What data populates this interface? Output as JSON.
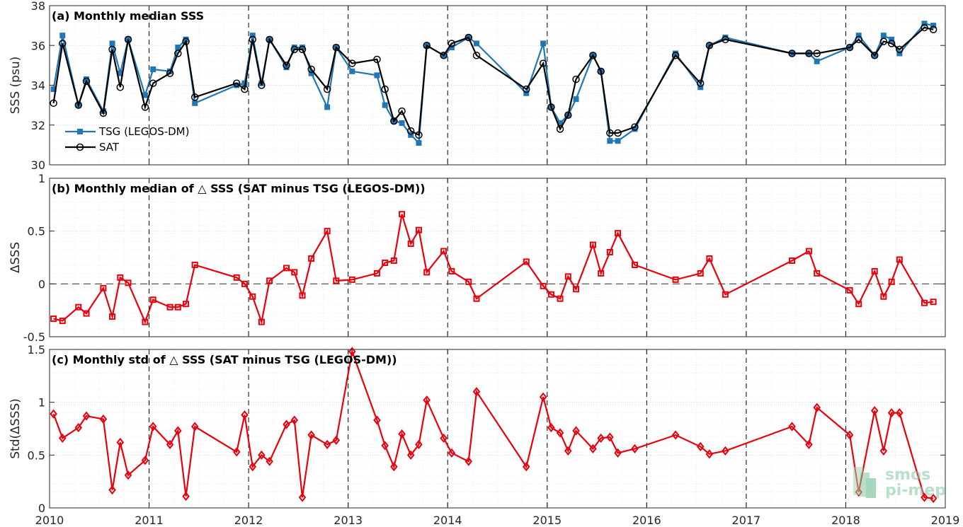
{
  "chart_data": [
    {
      "type": "line",
      "title": "(a) Monthly median SSS",
      "ylabel": "SSS (psu)",
      "ylim": [
        30,
        38
      ],
      "yticks": [
        "30",
        "32",
        "34",
        "36",
        "38"
      ],
      "xlim": [
        2010,
        2019
      ],
      "xticks": [
        "2010",
        "2011",
        "2012",
        "2013",
        "2014",
        "2015",
        "2016",
        "2017",
        "2018",
        "2019"
      ],
      "grid": true,
      "legend_position": "lower-left",
      "series": [
        {
          "name": "TSG (LEGOS-DM)",
          "color": "#1f77b4",
          "marker": "filled-square",
          "x": [
            2010.04,
            2010.13,
            2010.29,
            2010.37,
            2010.54,
            2010.63,
            2010.71,
            2010.79,
            2010.96,
            2011.04,
            2011.21,
            2011.29,
            2011.37,
            2011.46,
            2011.88,
            2011.96,
            2012.04,
            2012.13,
            2012.21,
            2012.38,
            2012.46,
            2012.54,
            2012.63,
            2012.79,
            2012.88,
            2013.04,
            2013.29,
            2013.37,
            2013.46,
            2013.54,
            2013.63,
            2013.71,
            2013.79,
            2013.96,
            2014.04,
            2014.21,
            2014.29,
            2014.79,
            2014.96,
            2015.04,
            2015.13,
            2015.21,
            2015.29,
            2015.46,
            2015.54,
            2015.63,
            2015.71,
            2015.88,
            2016.29,
            2016.54,
            2016.63,
            2016.79,
            2017.46,
            2017.63,
            2017.71,
            2018.04,
            2018.13,
            2018.29,
            2018.38,
            2018.46,
            2018.54,
            2018.79,
            2018.88
          ],
          "y": [
            33.8,
            36.5,
            33.0,
            34.3,
            32.7,
            36.1,
            34.6,
            36.3,
            33.5,
            34.8,
            34.7,
            35.9,
            36.3,
            33.1,
            34.0,
            34.1,
            36.5,
            34.1,
            36.3,
            34.9,
            35.9,
            35.9,
            34.6,
            32.9,
            35.9,
            34.7,
            34.5,
            33.0,
            32.2,
            32.1,
            31.5,
            31.1,
            36.0,
            35.5,
            35.9,
            36.4,
            36.1,
            33.6,
            36.1,
            32.9,
            32.1,
            32.5,
            33.3,
            35.5,
            34.7,
            31.2,
            31.2,
            31.8,
            35.6,
            33.9,
            36.0,
            36.4,
            35.6,
            35.6,
            35.2,
            35.9,
            36.5,
            35.5,
            36.5,
            36.3,
            35.6,
            37.1,
            37.0
          ]
        },
        {
          "name": "SAT",
          "color": "#000000",
          "marker": "open-circle",
          "x": [
            2010.04,
            2010.13,
            2010.29,
            2010.37,
            2010.54,
            2010.63,
            2010.71,
            2010.79,
            2010.96,
            2011.04,
            2011.21,
            2011.29,
            2011.37,
            2011.46,
            2011.88,
            2011.96,
            2012.04,
            2012.13,
            2012.21,
            2012.38,
            2012.46,
            2012.54,
            2012.63,
            2012.79,
            2012.88,
            2013.04,
            2013.29,
            2013.37,
            2013.46,
            2013.54,
            2013.63,
            2013.71,
            2013.79,
            2013.96,
            2014.04,
            2014.21,
            2014.29,
            2014.79,
            2014.96,
            2015.04,
            2015.13,
            2015.21,
            2015.29,
            2015.46,
            2015.54,
            2015.63,
            2015.71,
            2015.88,
            2016.29,
            2016.54,
            2016.63,
            2016.79,
            2017.46,
            2017.63,
            2017.71,
            2018.04,
            2018.13,
            2018.29,
            2018.38,
            2018.46,
            2018.54,
            2018.79,
            2018.88
          ],
          "y": [
            33.1,
            36.1,
            33.0,
            34.2,
            32.6,
            35.8,
            33.9,
            36.3,
            32.9,
            34.1,
            34.6,
            35.6,
            36.2,
            33.4,
            34.1,
            33.8,
            36.3,
            34.0,
            36.3,
            35.0,
            35.8,
            35.8,
            34.8,
            33.8,
            35.9,
            35.1,
            35.3,
            33.8,
            32.2,
            32.7,
            31.7,
            31.5,
            36.0,
            35.5,
            36.1,
            36.4,
            35.5,
            33.8,
            35.1,
            32.9,
            31.8,
            32.5,
            34.3,
            35.5,
            34.7,
            31.6,
            31.6,
            31.9,
            35.5,
            34.1,
            36.0,
            36.3,
            35.6,
            35.6,
            35.6,
            35.9,
            36.3,
            35.5,
            36.2,
            36.1,
            35.8,
            36.9,
            36.8
          ]
        }
      ]
    },
    {
      "type": "line",
      "title": "(b) Monthly median of △ SSS (SAT minus TSG (LEGOS-DM))",
      "ylabel": "ΔSSS",
      "ylim": [
        -0.5,
        1
      ],
      "yticks": [
        "-0.5",
        "0",
        "0.5",
        "1"
      ],
      "xlim": [
        2010,
        2019
      ],
      "xticks": [
        "2010",
        "2011",
        "2012",
        "2013",
        "2014",
        "2015",
        "2016",
        "2017",
        "2018",
        "2019"
      ],
      "grid": true,
      "zero_line": true,
      "series": [
        {
          "color": "#e8000b",
          "marker": "open-square",
          "x": [
            2010.04,
            2010.13,
            2010.29,
            2010.37,
            2010.54,
            2010.63,
            2010.71,
            2010.79,
            2010.96,
            2011.04,
            2011.21,
            2011.29,
            2011.37,
            2011.46,
            2011.88,
            2011.96,
            2012.04,
            2012.13,
            2012.21,
            2012.38,
            2012.46,
            2012.54,
            2012.63,
            2012.79,
            2012.88,
            2013.04,
            2013.29,
            2013.37,
            2013.46,
            2013.54,
            2013.63,
            2013.71,
            2013.79,
            2013.96,
            2014.04,
            2014.21,
            2014.29,
            2014.79,
            2014.96,
            2015.04,
            2015.13,
            2015.21,
            2015.29,
            2015.46,
            2015.54,
            2015.63,
            2015.71,
            2015.88,
            2016.29,
            2016.54,
            2016.63,
            2016.79,
            2017.46,
            2017.63,
            2017.71,
            2018.04,
            2018.13,
            2018.29,
            2018.38,
            2018.46,
            2018.54,
            2018.79,
            2018.88
          ],
          "y": [
            -0.33,
            -0.35,
            -0.22,
            -0.28,
            -0.04,
            -0.31,
            0.06,
            0.01,
            -0.36,
            -0.15,
            -0.22,
            -0.22,
            -0.19,
            0.18,
            0.06,
            0.0,
            -0.12,
            -0.36,
            0.03,
            0.15,
            0.11,
            -0.11,
            0.24,
            0.5,
            0.03,
            0.04,
            0.1,
            0.2,
            0.22,
            0.66,
            0.38,
            0.51,
            0.11,
            0.31,
            0.12,
            0.02,
            -0.14,
            0.21,
            -0.02,
            -0.1,
            -0.14,
            0.07,
            -0.05,
            0.37,
            0.1,
            0.3,
            0.48,
            0.18,
            0.04,
            0.1,
            0.24,
            -0.1,
            0.22,
            0.31,
            0.1,
            -0.06,
            -0.19,
            0.12,
            -0.12,
            0.02,
            0.23,
            -0.18,
            -0.17
          ]
        }
      ]
    },
    {
      "type": "line",
      "title": "(c) Monthly std of △ SSS (SAT minus TSG (LEGOS-DM))",
      "ylabel": "Std(ΔSSS)",
      "ylim": [
        0,
        1.5
      ],
      "yticks": [
        "0",
        "0.5",
        "1",
        "1.5"
      ],
      "xlim": [
        2010,
        2019
      ],
      "xticks": [
        "2010",
        "2011",
        "2012",
        "2013",
        "2014",
        "2015",
        "2016",
        "2017",
        "2018",
        "2019"
      ],
      "grid": true,
      "series": [
        {
          "color": "#e8000b",
          "marker": "open-diamond",
          "x": [
            2010.04,
            2010.13,
            2010.29,
            2010.37,
            2010.54,
            2010.63,
            2010.71,
            2010.79,
            2010.96,
            2011.04,
            2011.21,
            2011.29,
            2011.37,
            2011.46,
            2011.88,
            2011.96,
            2012.04,
            2012.13,
            2012.21,
            2012.38,
            2012.46,
            2012.54,
            2012.63,
            2012.79,
            2012.88,
            2013.04,
            2013.29,
            2013.37,
            2013.46,
            2013.54,
            2013.63,
            2013.71,
            2013.79,
            2013.96,
            2014.04,
            2014.21,
            2014.29,
            2014.79,
            2014.96,
            2015.04,
            2015.13,
            2015.21,
            2015.29,
            2015.46,
            2015.54,
            2015.63,
            2015.71,
            2015.88,
            2016.29,
            2016.54,
            2016.63,
            2016.79,
            2017.46,
            2017.63,
            2017.71,
            2018.04,
            2018.13,
            2018.29,
            2018.38,
            2018.46,
            2018.54,
            2018.79,
            2018.88
          ],
          "y": [
            0.89,
            0.66,
            0.76,
            0.87,
            0.84,
            0.17,
            0.62,
            0.31,
            0.45,
            0.77,
            0.6,
            0.73,
            0.11,
            0.77,
            0.53,
            0.88,
            0.39,
            0.5,
            0.44,
            0.79,
            0.83,
            0.1,
            0.69,
            0.6,
            0.64,
            1.48,
            0.83,
            0.59,
            0.39,
            0.7,
            0.5,
            0.6,
            1.02,
            0.66,
            0.52,
            0.44,
            1.1,
            0.39,
            1.05,
            0.76,
            0.71,
            0.54,
            0.73,
            0.56,
            0.66,
            0.67,
            0.52,
            0.56,
            0.69,
            0.58,
            0.51,
            0.54,
            0.77,
            0.6,
            0.95,
            0.69,
            0.15,
            0.92,
            0.54,
            0.9,
            0.9,
            0.1,
            0.09
          ]
        }
      ]
    }
  ],
  "watermark": {
    "line1": "smos",
    "line2": "pi-mep"
  }
}
